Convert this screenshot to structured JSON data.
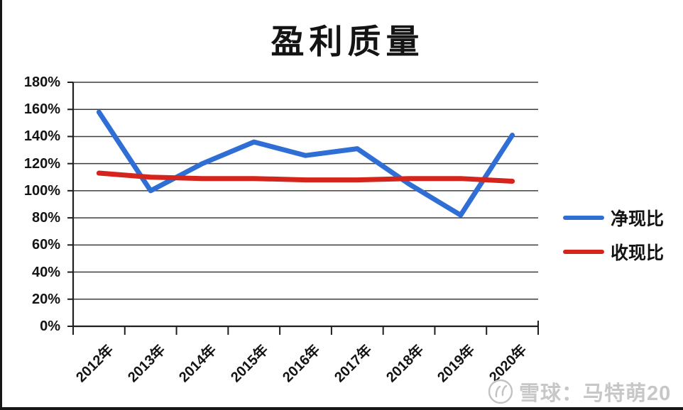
{
  "title": "盈利质量",
  "chart_data": {
    "type": "line",
    "title": "盈利质量",
    "categories": [
      "2012年",
      "2013年",
      "2014年",
      "2015年",
      "2016年",
      "2017年",
      "2018年",
      "2019年",
      "2020年"
    ],
    "series": [
      {
        "name": "净现比",
        "color": "#2f6fd5",
        "values": [
          158,
          100,
          120,
          136,
          126,
          131,
          105,
          82,
          141
        ]
      },
      {
        "name": "收现比",
        "color": "#d5241b",
        "values": [
          113,
          110,
          109,
          109,
          108,
          108,
          109,
          109,
          107
        ]
      }
    ],
    "ylim": [
      0,
      180
    ],
    "ytick_step": 20,
    "ytick_labels": [
      "0%",
      "20%",
      "40%",
      "60%",
      "80%",
      "100%",
      "120%",
      "140%",
      "160%",
      "180%"
    ],
    "grid": true,
    "legend_position": "right",
    "x_label_rotation_deg": -45
  },
  "colors": {
    "axis": "#1f1f1f",
    "grid": "#3d3d3d",
    "label_text": "#141414",
    "watermark": "#c7c7c7",
    "background": "#ffffff"
  },
  "watermark": {
    "logo_icon": "xueqiu-logo",
    "text": "雪球：马特萌20"
  }
}
